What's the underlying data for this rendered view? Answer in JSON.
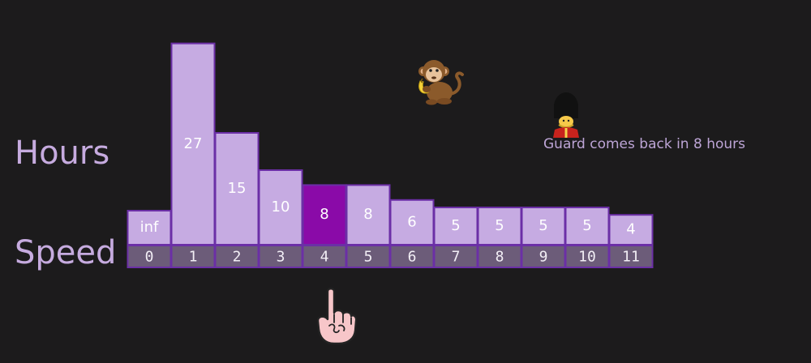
{
  "labels": {
    "hours": "Hours",
    "speed": "Speed"
  },
  "note": "Guard comes back in 8 hours",
  "colors": {
    "background": "#1c1b1c",
    "bar": "#c6abe2",
    "bar_highlight": "#8a0aa8",
    "bar_border": "#6b2fa6",
    "speed_cell": "#6c5c79"
  },
  "icons": {
    "monkey": "monkey-eating-banana-icon",
    "guard": "royal-guard-icon",
    "pointer": "pointing-finger-icon"
  },
  "chart_data": {
    "type": "bar",
    "categories": [
      "0",
      "1",
      "2",
      "3",
      "4",
      "5",
      "6",
      "7",
      "8",
      "9",
      "10",
      "11"
    ],
    "values": [
      "inf",
      27,
      15,
      10,
      8,
      8,
      6,
      5,
      5,
      5,
      5,
      4
    ],
    "highlight_index": 4,
    "pointer_index": 4
  }
}
